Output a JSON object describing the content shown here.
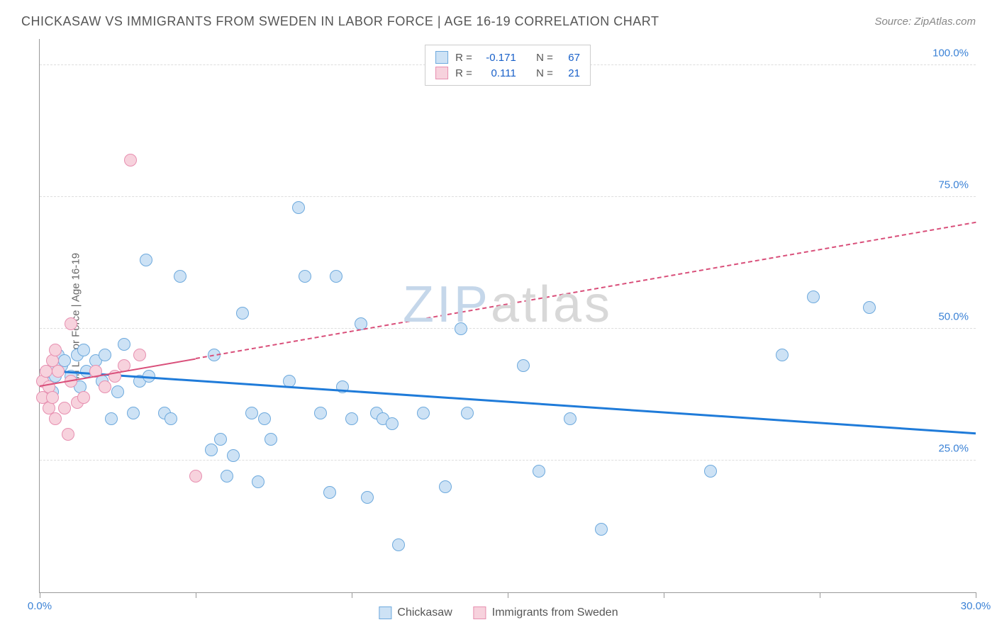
{
  "title": "CHICKASAW VS IMMIGRANTS FROM SWEDEN IN LABOR FORCE | AGE 16-19 CORRELATION CHART",
  "source": "Source: ZipAtlas.com",
  "ylabel": "In Labor Force | Age 16-19",
  "watermark": {
    "part1": "ZIP",
    "part2": "atlas",
    "color1": "#c5d7ea",
    "color2": "#d8d8d8"
  },
  "chart": {
    "type": "scatter",
    "xlim": [
      0,
      30
    ],
    "ylim": [
      0,
      105
    ],
    "xtick_positions": [
      0,
      5,
      10,
      15,
      20,
      25,
      30
    ],
    "xtick_labels_shown": {
      "0": "0.0%",
      "30": "30.0%"
    },
    "ytick_positions": [
      0,
      25,
      50,
      75,
      100
    ],
    "ytick_labels": {
      "25": "25.0%",
      "50": "50.0%",
      "75": "75.0%",
      "100": "100.0%"
    },
    "grid_color": "#dddddd",
    "background_color": "#ffffff",
    "axis_color": "#999999",
    "tick_label_color": "#3b82d6"
  },
  "series": [
    {
      "name": "Chickasaw",
      "fill": "#cde2f5",
      "stroke": "#6da9dd",
      "marker_radius": 9,
      "r_value": "-0.171",
      "n_value": "67",
      "trend": {
        "x1": 0,
        "y1": 42,
        "x2": 30,
        "y2": 30,
        "color": "#1f7bd9",
        "width": 3,
        "dash": false,
        "solid_until_x": 30
      },
      "points": [
        [
          0.2,
          40
        ],
        [
          0.3,
          42
        ],
        [
          0.4,
          38
        ],
        [
          0.5,
          41
        ],
        [
          0.6,
          45
        ],
        [
          0.7,
          43
        ],
        [
          0.8,
          44
        ],
        [
          1.0,
          41
        ],
        [
          1.2,
          45
        ],
        [
          1.3,
          39
        ],
        [
          1.4,
          46
        ],
        [
          1.5,
          42
        ],
        [
          1.8,
          44
        ],
        [
          2.0,
          40
        ],
        [
          2.1,
          45
        ],
        [
          2.3,
          33
        ],
        [
          2.5,
          38
        ],
        [
          2.7,
          47
        ],
        [
          3.0,
          34
        ],
        [
          3.2,
          40
        ],
        [
          3.5,
          41
        ],
        [
          3.4,
          63
        ],
        [
          4.0,
          34
        ],
        [
          4.2,
          33
        ],
        [
          4.5,
          60
        ],
        [
          5.5,
          27
        ],
        [
          5.6,
          45
        ],
        [
          5.8,
          29
        ],
        [
          6.0,
          22
        ],
        [
          6.2,
          26
        ],
        [
          6.5,
          53
        ],
        [
          6.8,
          34
        ],
        [
          7.0,
          21
        ],
        [
          7.2,
          33
        ],
        [
          7.4,
          29
        ],
        [
          8.0,
          40
        ],
        [
          8.3,
          73
        ],
        [
          8.5,
          60
        ],
        [
          9.0,
          34
        ],
        [
          9.3,
          19
        ],
        [
          9.5,
          60
        ],
        [
          9.7,
          39
        ],
        [
          10.0,
          33
        ],
        [
          10.3,
          51
        ],
        [
          10.5,
          18
        ],
        [
          10.8,
          34
        ],
        [
          11.0,
          33
        ],
        [
          11.3,
          32
        ],
        [
          11.5,
          9
        ],
        [
          12.3,
          34
        ],
        [
          13.0,
          20
        ],
        [
          13.5,
          50
        ],
        [
          13.7,
          34
        ],
        [
          15.5,
          43
        ],
        [
          16.0,
          23
        ],
        [
          17.0,
          33
        ],
        [
          18.0,
          12
        ],
        [
          21.5,
          23
        ],
        [
          23.8,
          45
        ],
        [
          24.8,
          56
        ],
        [
          26.6,
          54
        ]
      ]
    },
    {
      "name": "Immigrants from Sweden",
      "fill": "#f7d2dd",
      "stroke": "#e78fb0",
      "marker_radius": 9,
      "r_value": "0.111",
      "n_value": "21",
      "trend": {
        "x1": 0,
        "y1": 39,
        "x2": 30,
        "y2": 70,
        "color": "#d94f7a",
        "width": 2,
        "dash": true,
        "solid_until_x": 5
      },
      "points": [
        [
          0.1,
          37
        ],
        [
          0.1,
          40
        ],
        [
          0.2,
          42
        ],
        [
          0.3,
          35
        ],
        [
          0.3,
          39
        ],
        [
          0.4,
          44
        ],
        [
          0.4,
          37
        ],
        [
          0.5,
          46
        ],
        [
          0.5,
          33
        ],
        [
          0.6,
          42
        ],
        [
          0.8,
          35
        ],
        [
          0.9,
          30
        ],
        [
          1.0,
          51
        ],
        [
          1.0,
          40
        ],
        [
          1.2,
          36
        ],
        [
          1.4,
          37
        ],
        [
          1.8,
          42
        ],
        [
          2.1,
          39
        ],
        [
          2.4,
          41
        ],
        [
          2.7,
          43
        ],
        [
          3.2,
          45
        ],
        [
          2.9,
          82
        ],
        [
          5.0,
          22
        ]
      ]
    }
  ],
  "legend_top": {
    "r_label": "R =",
    "n_label": "N ="
  },
  "legend_bottom": [
    {
      "label": "Chickasaw",
      "fill": "#cde2f5",
      "stroke": "#6da9dd"
    },
    {
      "label": "Immigrants from Sweden",
      "fill": "#f7d2dd",
      "stroke": "#e78fb0"
    }
  ]
}
